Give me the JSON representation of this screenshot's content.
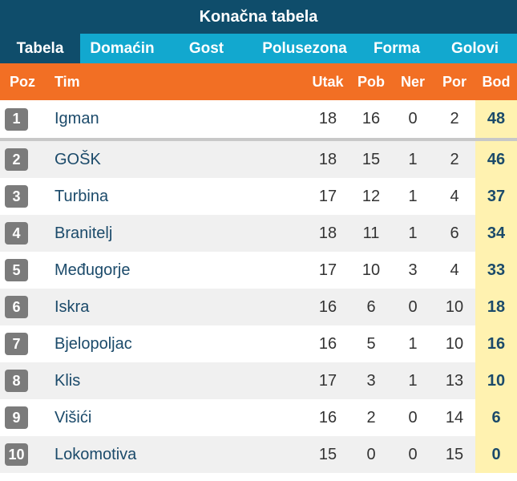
{
  "title": "Konačna tabela",
  "tabs": [
    {
      "label": "Tabela",
      "active": true
    },
    {
      "label": "Domaćin",
      "active": false
    },
    {
      "label": "Gost",
      "active": false
    },
    {
      "label": "Polusezona",
      "active": false
    },
    {
      "label": "Forma",
      "active": false
    },
    {
      "label": "Golovi",
      "active": false
    }
  ],
  "columns": {
    "poz": "Poz",
    "tim": "Tim",
    "utak": "Utak",
    "pob": "Pob",
    "ner": "Ner",
    "por": "Por",
    "bod": "Bod"
  },
  "rows": [
    {
      "poz": "1",
      "tim": "Igman",
      "utak": "18",
      "pob": "16",
      "ner": "0",
      "por": "2",
      "bod": "48"
    },
    {
      "poz": "2",
      "tim": "GOŠK",
      "utak": "18",
      "pob": "15",
      "ner": "1",
      "por": "2",
      "bod": "46"
    },
    {
      "poz": "3",
      "tim": "Turbina",
      "utak": "17",
      "pob": "12",
      "ner": "1",
      "por": "4",
      "bod": "37"
    },
    {
      "poz": "4",
      "tim": "Branitelj",
      "utak": "18",
      "pob": "11",
      "ner": "1",
      "por": "6",
      "bod": "34"
    },
    {
      "poz": "5",
      "tim": "Međugorje",
      "utak": "17",
      "pob": "10",
      "ner": "3",
      "por": "4",
      "bod": "33"
    },
    {
      "poz": "6",
      "tim": "Iskra",
      "utak": "16",
      "pob": "6",
      "ner": "0",
      "por": "10",
      "bod": "18"
    },
    {
      "poz": "7",
      "tim": "Bjelopoljac",
      "utak": "16",
      "pob": "5",
      "ner": "1",
      "por": "10",
      "bod": "16"
    },
    {
      "poz": "8",
      "tim": "Klis",
      "utak": "17",
      "pob": "3",
      "ner": "1",
      "por": "13",
      "bod": "10"
    },
    {
      "poz": "9",
      "tim": "Višići",
      "utak": "16",
      "pob": "2",
      "ner": "0",
      "por": "14",
      "bod": "6"
    },
    {
      "poz": "10",
      "tim": "Lokomotiva",
      "utak": "15",
      "pob": "0",
      "ner": "0",
      "por": "15",
      "bod": "0"
    }
  ],
  "colors": {
    "title_bg": "#0f4d6b",
    "tab_bg": "#12a8cf",
    "header_bg": "#f26f24",
    "rank_bg": "#7b7b7b",
    "bod_bg": "#fff2b0"
  }
}
